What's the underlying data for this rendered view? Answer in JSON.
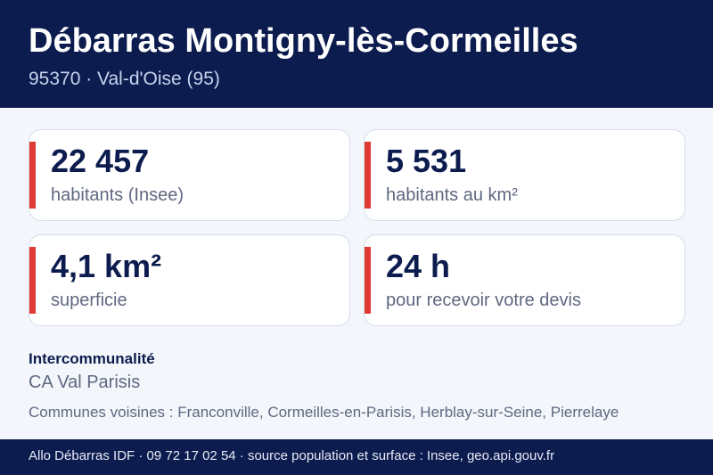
{
  "header": {
    "title": "Débarras Montigny-lès-Cormeilles",
    "subtitle": "95370 · Val-d'Oise (95)"
  },
  "stats": [
    {
      "value": "22 457",
      "label": "habitants (Insee)"
    },
    {
      "value": "5 531",
      "label": "habitants au km²"
    },
    {
      "value": "4,1 km²",
      "label": "superficie"
    },
    {
      "value": "24 h",
      "label": "pour recevoir votre devis"
    }
  ],
  "intercommunalite": {
    "heading": "Intercommunalité",
    "value": "CA Val Parisis"
  },
  "neighbors": "Communes voisines : Franconville, Cormeilles-en-Parisis, Herblay-sur-Seine, Pierrelaye",
  "footer": {
    "text": "Allo Débarras IDF · 09 72 17 02 54 · source population et surface : Insee, geo.api.gouv.fr"
  },
  "colors": {
    "navy": "#0c1c4e",
    "accent": "#df3a33",
    "background": "#f3f6fb"
  }
}
